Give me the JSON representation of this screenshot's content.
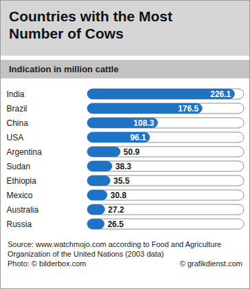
{
  "chart_data": {
    "type": "bar",
    "orientation": "horizontal",
    "title": "Countries with the Most Number of Cows",
    "subtitle": "Indication in million cattle",
    "categories": [
      "India",
      "Brazil",
      "China",
      "USA",
      "Argentina",
      "Sudan",
      "Ethiopia",
      "Mexico",
      "Australia",
      "Russia"
    ],
    "values": [
      226.1,
      176.5,
      108.3,
      96.1,
      50.9,
      38.3,
      35.5,
      30.8,
      27.2,
      26.5
    ],
    "color": "#1e73c4",
    "xlim": [
      0,
      240
    ],
    "xticks": [],
    "grid": false,
    "data_labels": true,
    "tick_labels": "y",
    "caption": "Source: www.watchmojo.com according to Food and Agriculture Organization of the United Nations (2003 data)",
    "credits": [
      "Photo: © bilderbox.com",
      "© grafikdienst.com"
    ]
  }
}
